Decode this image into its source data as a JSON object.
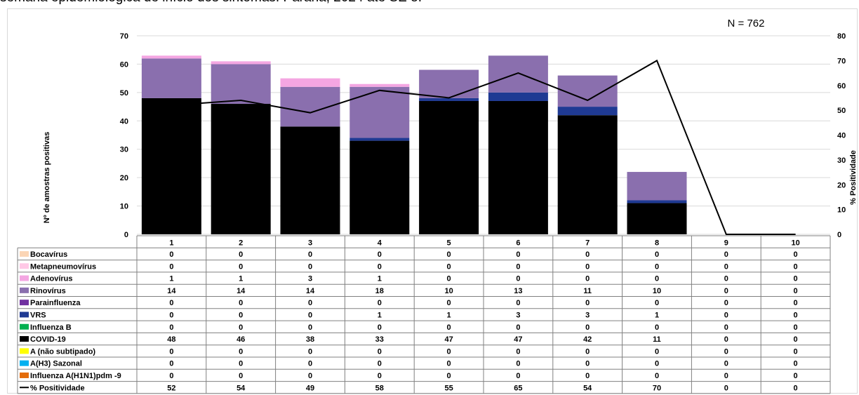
{
  "caption": "semana epidemiológica de início dos sintomas. Paraná, 2024 até SE 8.",
  "chart_data": {
    "type": "bar",
    "stacked": true,
    "annotation": "N = 762",
    "ylabel": "Nº de amostras positivas",
    "y2label": "% Positividade",
    "ylim": [
      0,
      70
    ],
    "yticks": [
      0,
      10,
      20,
      30,
      40,
      50,
      60,
      70
    ],
    "y2lim": [
      0,
      80
    ],
    "y2ticks": [
      0,
      10,
      20,
      30,
      40,
      50,
      60,
      70,
      80
    ],
    "grid": true,
    "legend": "data table",
    "categories": [
      "1",
      "2",
      "3",
      "4",
      "5",
      "6",
      "7",
      "8",
      "9",
      "10"
    ],
    "series": [
      {
        "name": "Bocavírus",
        "color": "#fbd5b5",
        "values": [
          0,
          0,
          0,
          0,
          0,
          0,
          0,
          0,
          0,
          0
        ]
      },
      {
        "name": "Metapneumovírus",
        "color": "#ffc8e6",
        "values": [
          0,
          0,
          0,
          0,
          0,
          0,
          0,
          0,
          0,
          0
        ]
      },
      {
        "name": "Adenovírus",
        "color": "#f4a6e2",
        "values": [
          1,
          1,
          3,
          1,
          0,
          0,
          0,
          0,
          0,
          0
        ]
      },
      {
        "name": "Rinovírus",
        "color": "#8a6fae",
        "values": [
          14,
          14,
          14,
          18,
          10,
          13,
          11,
          10,
          0,
          0
        ]
      },
      {
        "name": "Parainfluenza",
        "color": "#7030a0",
        "values": [
          0,
          0,
          0,
          0,
          0,
          0,
          0,
          0,
          0,
          0
        ]
      },
      {
        "name": "VRS",
        "color": "#1f3a93",
        "values": [
          0,
          0,
          0,
          1,
          1,
          3,
          3,
          1,
          0,
          0
        ]
      },
      {
        "name": "Influenza B",
        "color": "#00b050",
        "values": [
          0,
          0,
          0,
          0,
          0,
          0,
          0,
          0,
          0,
          0
        ]
      },
      {
        "name": "COVID-19",
        "color": "#000000",
        "values": [
          48,
          46,
          38,
          33,
          47,
          47,
          42,
          11,
          0,
          0
        ]
      },
      {
        "name": "A (não subtipado)",
        "color": "#ffff00",
        "values": [
          0,
          0,
          0,
          0,
          0,
          0,
          0,
          0,
          0,
          0
        ]
      },
      {
        "name": "A(H3) Sazonal",
        "color": "#00b0f0",
        "values": [
          0,
          0,
          0,
          0,
          0,
          0,
          0,
          0,
          0,
          0
        ]
      },
      {
        "name": "Influenza A(H1N1)pdm -9",
        "color": "#e46c0a",
        "values": [
          0,
          0,
          0,
          0,
          0,
          0,
          0,
          0,
          0,
          0
        ]
      }
    ],
    "line": {
      "name": "% Positividade",
      "color": "#000000",
      "axis": "right",
      "values": [
        52,
        54,
        49,
        58,
        55,
        65,
        54,
        70,
        0,
        0
      ]
    },
    "stack_order": [
      "COVID-19",
      "Influenza A(H1N1)pdm -9",
      "A(H3) Sazonal",
      "A (não subtipado)",
      "Influenza B",
      "VRS",
      "Parainfluenza",
      "Rinovírus",
      "Adenovírus",
      "Metapneumovírus",
      "Bocavírus"
    ]
  }
}
